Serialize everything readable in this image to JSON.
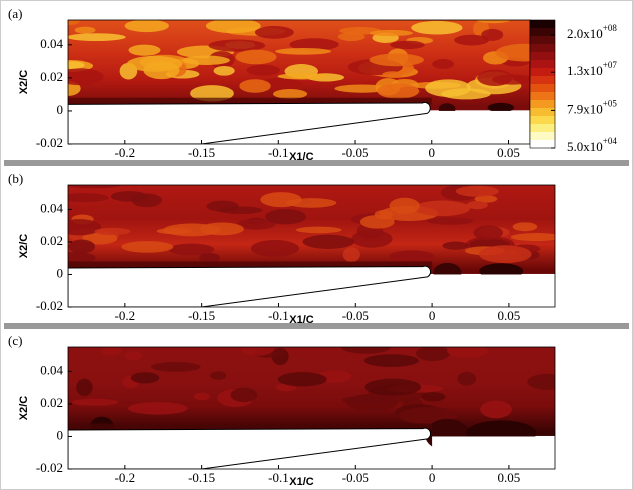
{
  "chart_data": [
    {
      "type": "contour",
      "panel_label": "(a)",
      "x_label": "X1/C",
      "y_label": "X2/C",
      "xlim": [
        -0.237,
        0.064
      ],
      "ylim": [
        -0.02,
        0.055
      ],
      "xticks": [
        -0.2,
        -0.15,
        -0.1,
        -0.05,
        0,
        0.05
      ],
      "yticks": [
        -0.02,
        0,
        0.02,
        0.04
      ],
      "colorbar": {
        "log": true,
        "clim": [
          50000,
          600000000
        ],
        "colors": [
          "#1a0000",
          "#3a0404",
          "#5a0808",
          "#780c0c",
          "#941010",
          "#ac1414",
          "#c41c10",
          "#d63410",
          "#e45210",
          "#ee7418",
          "#f49a20",
          "#f8bc30",
          "#fbd84c",
          "#fdee80",
          "#fefac4",
          "#ffffff"
        ],
        "ticks": [
          {
            "value": 200000000,
            "label": "2.0x10",
            "exponent": "+08"
          },
          {
            "value": 13000000,
            "label": "1.3x10",
            "exponent": "+07"
          },
          {
            "value": 790000,
            "label": "7.9x10",
            "exponent": "+05"
          },
          {
            "value": 50000,
            "label": "5.0x10",
            "exponent": "+04"
          }
        ]
      }
    },
    {
      "type": "contour",
      "panel_label": "(b)",
      "x_label": "X1/C",
      "y_label": "X2/C",
      "xlim": [
        -0.237,
        0.08
      ],
      "ylim": [
        -0.02,
        0.055
      ],
      "xticks": [
        -0.2,
        -0.15,
        -0.1,
        -0.05,
        0,
        0.05
      ],
      "yticks": [
        -0.02,
        0,
        0.02,
        0.04
      ]
    },
    {
      "type": "contour",
      "panel_label": "(c)",
      "x_label": "X1/C",
      "y_label": "X2/C",
      "xlim": [
        -0.237,
        0.08
      ],
      "ylim": [
        -0.02,
        0.055
      ],
      "xticks": [
        -0.2,
        -0.15,
        -0.1,
        -0.05,
        0,
        0.05
      ],
      "yticks": [
        -0.02,
        0,
        0.02,
        0.04
      ]
    }
  ]
}
